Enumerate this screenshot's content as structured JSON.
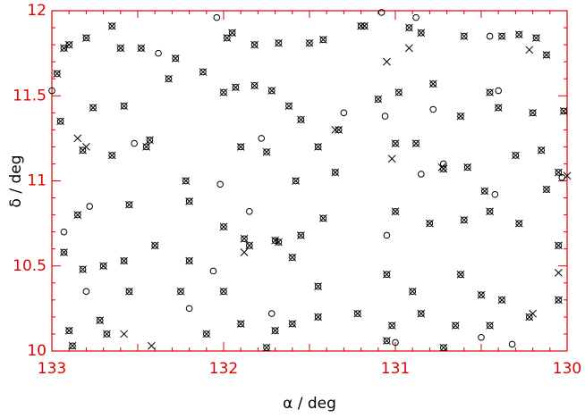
{
  "chart_data": {
    "type": "scatter",
    "x_label": "α / deg",
    "y_label": "δ / deg",
    "xlim": [
      133,
      130
    ],
    "ylim": [
      10,
      12
    ],
    "xticks": [
      133,
      132,
      131,
      130
    ],
    "yticks": [
      10,
      10.5,
      11,
      11.5,
      12
    ],
    "axis_color": "#e00000",
    "color": "#000000",
    "series": [
      {
        "marker": "circle-cross",
        "x": [
          132.97,
          132.93,
          132.9,
          132.8,
          132.65,
          132.6,
          132.48,
          132.28,
          132.12,
          131.98,
          131.95,
          131.82,
          131.68,
          131.5,
          131.42,
          131.2,
          131.18,
          130.92,
          130.85,
          130.6,
          130.38,
          130.28,
          130.18,
          130.12,
          132.95,
          132.76,
          132.58,
          132.43,
          132.32,
          132.0,
          131.93,
          131.82,
          131.72,
          131.62,
          131.55,
          131.33,
          131.1,
          130.98,
          130.78,
          130.62,
          130.45,
          130.4,
          130.2,
          130.02,
          132.82,
          132.65,
          132.45,
          132.22,
          131.9,
          131.75,
          131.58,
          131.45,
          131.35,
          131.0,
          130.88,
          130.72,
          130.58,
          130.48,
          130.3,
          130.15,
          130.05,
          130.12,
          132.85,
          132.55,
          132.2,
          132.0,
          131.88,
          131.68,
          131.55,
          131.42,
          131.0,
          130.8,
          130.6,
          130.45,
          130.28,
          130.05,
          132.93,
          132.82,
          132.7,
          132.58,
          132.4,
          132.2,
          132.0,
          131.85,
          131.7,
          131.6,
          131.45,
          131.05,
          130.9,
          130.62,
          130.5,
          130.38,
          130.05,
          132.9,
          132.72,
          132.55,
          132.25,
          132.1,
          131.9,
          131.7,
          131.6,
          131.45,
          131.22,
          131.02,
          130.85,
          130.65,
          130.45,
          130.22,
          132.88,
          132.68,
          131.75,
          131.05,
          130.72
        ],
        "y": [
          11.63,
          11.78,
          11.8,
          11.84,
          11.91,
          11.78,
          11.78,
          11.72,
          11.64,
          11.84,
          11.87,
          11.8,
          11.81,
          11.81,
          11.83,
          11.91,
          11.91,
          11.9,
          11.87,
          11.85,
          11.85,
          11.86,
          11.84,
          11.74,
          11.35,
          11.43,
          11.44,
          11.24,
          11.6,
          11.52,
          11.55,
          11.56,
          11.53,
          11.44,
          11.36,
          11.3,
          11.48,
          11.52,
          11.57,
          11.38,
          11.52,
          11.43,
          11.4,
          11.41,
          11.18,
          11.15,
          11.2,
          11.0,
          11.2,
          11.17,
          11.0,
          11.2,
          11.05,
          11.22,
          11.22,
          11.07,
          11.08,
          10.94,
          11.15,
          11.18,
          11.05,
          10.95,
          10.8,
          10.86,
          10.88,
          10.73,
          10.66,
          10.64,
          10.68,
          10.78,
          10.82,
          10.75,
          10.77,
          10.82,
          10.75,
          10.62,
          10.58,
          10.48,
          10.5,
          10.53,
          10.62,
          10.53,
          10.35,
          10.62,
          10.65,
          10.55,
          10.38,
          10.45,
          10.35,
          10.45,
          10.33,
          10.3,
          10.3,
          10.12,
          10.18,
          10.35,
          10.35,
          10.1,
          10.16,
          10.12,
          10.16,
          10.2,
          10.22,
          10.15,
          10.22,
          10.15,
          10.15,
          10.2,
          10.03,
          10.1,
          10.02,
          10.06,
          10.02
        ]
      },
      {
        "marker": "circle",
        "x": [
          133.0,
          132.93,
          132.8,
          132.52,
          132.38,
          132.04,
          132.02,
          131.85,
          132.06,
          132.2,
          131.78,
          131.72,
          131.3,
          131.08,
          131.06,
          131.0,
          130.88,
          130.85,
          130.78,
          130.72,
          130.4,
          130.42,
          130.5,
          130.32,
          130.03,
          130.45,
          131.05,
          132.78
        ],
        "y": [
          11.53,
          10.7,
          10.35,
          11.22,
          11.75,
          11.96,
          10.98,
          10.82,
          10.47,
          10.25,
          11.25,
          10.22,
          11.4,
          11.99,
          11.38,
          10.05,
          11.96,
          11.04,
          11.42,
          11.1,
          11.53,
          10.92,
          10.08,
          10.04,
          11.02,
          11.85,
          10.68,
          10.85
        ]
      },
      {
        "marker": "cross",
        "x": [
          132.85,
          132.58,
          132.42,
          131.35,
          131.02,
          131.05,
          130.92,
          130.73,
          130.22,
          130.05,
          130.2,
          132.8,
          131.88,
          130.0
        ],
        "y": [
          11.25,
          10.1,
          10.03,
          11.3,
          11.13,
          11.7,
          11.78,
          11.08,
          11.77,
          10.46,
          10.22,
          11.2,
          10.58,
          11.03
        ]
      }
    ]
  }
}
